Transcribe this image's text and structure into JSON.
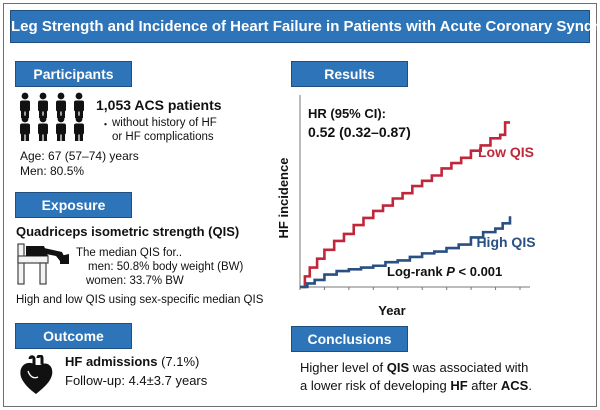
{
  "title": "Leg Strength and Incidence of Heart Failure in Patients with Acute Coronary Syndrome",
  "participants": {
    "header": "Participants",
    "count": "1,053 ACS patients",
    "bullet": "・",
    "criteria_line1": "without history of HF",
    "criteria_line2": "or HF complications",
    "age": "Age: 67 (57–74) years",
    "men": "Men: 80.5%"
  },
  "exposure": {
    "header": "Exposure",
    "measure": "Quadriceps isometric  strength (QIS)",
    "median_intro": "The median QIS for..",
    "men": "men: 50.8% body weight (BW)",
    "women": "women: 33.7% BW",
    "grouping": "High and low QIS using sex-specific median QIS"
  },
  "outcome": {
    "header": "Outcome",
    "label_bold": "HF admissions",
    "label_rest": " (7.1%)",
    "followup": "Follow-up: 4.4±3.7 years"
  },
  "results": {
    "header": "Results",
    "hr_label": "HR (95% CI):",
    "hr_value": "0.52 (0.32–0.87)",
    "logrank_pre": "Log-rank ",
    "logrank_p": "P",
    "logrank_post": " < 0.001"
  },
  "chart_data": {
    "type": "line",
    "xlabel": "Year",
    "ylabel": "HF incidence",
    "grid": false,
    "series": [
      {
        "name": "Low QIS",
        "color": "#c0273a",
        "x": [
          0,
          0.2,
          0.4,
          0.7,
          1.0,
          1.4,
          1.8,
          2.2,
          2.6,
          3.0,
          3.4,
          3.8,
          4.2,
          4.6,
          5.0,
          5.4,
          5.8,
          6.2,
          6.6,
          7.0,
          7.4,
          7.8,
          8.2,
          8.4,
          8.6
        ],
        "y": [
          0,
          6,
          11,
          16,
          21,
          26,
          30,
          35,
          39,
          43,
          46,
          50,
          53,
          57,
          60,
          63,
          67,
          70,
          73,
          77,
          80,
          84,
          86,
          93,
          93
        ]
      },
      {
        "name": "High QIS",
        "color": "#2a4f82",
        "x": [
          0,
          0.3,
          0.6,
          1.0,
          1.5,
          2.0,
          2.5,
          3.0,
          3.5,
          4.0,
          4.5,
          5.0,
          5.5,
          6.0,
          6.5,
          7.0,
          7.5,
          8.0,
          8.3,
          8.6
        ],
        "y": [
          0,
          2,
          4,
          7,
          9,
          10,
          11,
          12,
          14,
          15,
          17,
          19,
          20,
          22,
          24,
          28,
          31,
          33,
          36,
          40
        ]
      }
    ]
  },
  "conclusions": {
    "header": "Conclusions",
    "l1_a": "Higher level of ",
    "l1_b": "QIS",
    "l1_c": " was associated with",
    "l2_a": "a lower risk of developing ",
    "l2_b": "HF",
    "l2_c": " after ",
    "l2_d": "ACS",
    "l2_e": "."
  }
}
